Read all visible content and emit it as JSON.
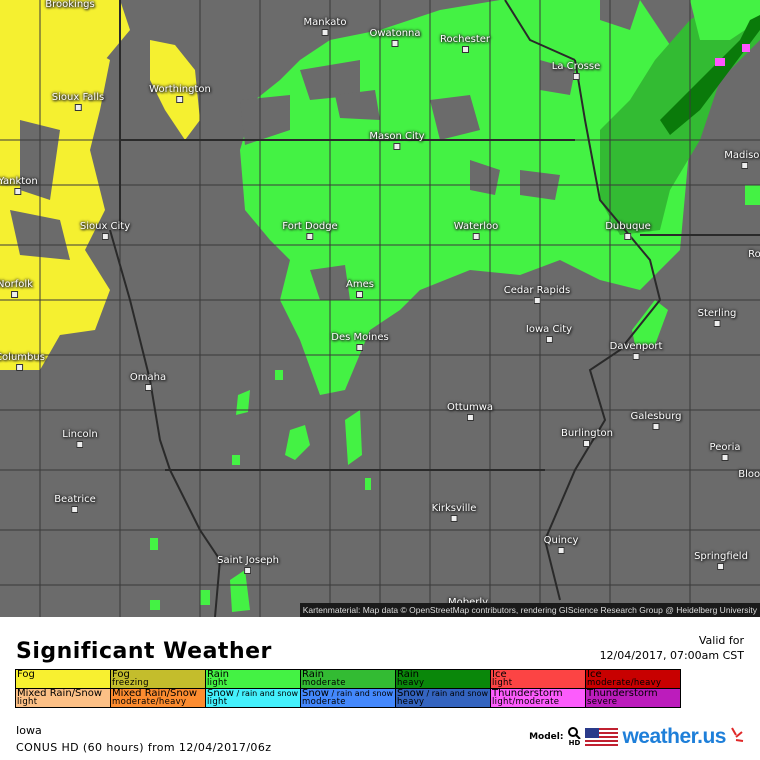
{
  "map": {
    "attribution": "Kartenmaterial: Map data © OpenStreetMap contributors, rendering GIScience Research Group @ Heidelberg University",
    "cities": [
      "Brookings",
      "Mankato",
      "Owatonna",
      "Rochester",
      "La Crosse",
      "Sioux Falls",
      "Worthington",
      "Mason City",
      "Madison",
      "Yankton",
      "Sioux City",
      "Fort Dodge",
      "Waterloo",
      "Dubuque",
      "Rockford",
      "Norfolk",
      "Ames",
      "Cedar Rapids",
      "Sterling",
      "Iowa City",
      "Des Moines",
      "Davenport",
      "Columbus",
      "Omaha",
      "Ottumwa",
      "Galesburg",
      "Lincoln",
      "Burlington",
      "Peoria",
      "Bloomington",
      "Beatrice",
      "Kirksville",
      "Quincy",
      "Saint Joseph",
      "Springfield",
      "Moberly"
    ],
    "colors": {
      "background": "#6b6b6b",
      "fog": "#f5f030",
      "rain_light": "#44f244",
      "rain_moderate": "#33bb33",
      "rain_heavy": "#0a7a0a",
      "thunderstorm": "#ff55ff"
    }
  },
  "legend": {
    "title": "Significant Weather",
    "valid_label": "Valid for",
    "valid_time": "12/04/2017, 07:00am CST",
    "row1": [
      {
        "type": "Fog",
        "sub": "",
        "color": "#f8f030"
      },
      {
        "type": "Fog",
        "sub": "freezing",
        "color": "#c4bd2c"
      },
      {
        "type": "Rain",
        "sub": "light",
        "color": "#44f244"
      },
      {
        "type": "Rain",
        "sub": "moderate",
        "color": "#33bb33"
      },
      {
        "type": "Rain",
        "sub": "heavy",
        "color": "#0a870a"
      },
      {
        "type": "Ice",
        "sub": "light",
        "color": "#fc4444"
      },
      {
        "type": "Ice",
        "sub": "moderate/heavy",
        "color": "#c80000"
      }
    ],
    "row2": [
      {
        "type": "Mixed Rain/Snow",
        "extra": "",
        "sub": "light",
        "color": "#fcc086"
      },
      {
        "type": "Mixed Rain/Snow",
        "extra": "",
        "sub": "moderate/heavy",
        "color": "#fc8c30"
      },
      {
        "type": "Snow",
        "extra": " / rain and snow",
        "sub": "light",
        "color": "#44f0fc"
      },
      {
        "type": "Snow",
        "extra": " / rain and snow",
        "sub": "moderate",
        "color": "#4488fc"
      },
      {
        "type": "Snow",
        "extra": " / rain and snow",
        "sub": "heavy",
        "color": "#3464c0"
      },
      {
        "type": "Thunderstorm",
        "extra": "",
        "sub": "light/moderate",
        "color": "#fc5cfc"
      },
      {
        "type": "Thunderstorm",
        "extra": "",
        "sub": "severe",
        "color": "#bc1cbc"
      }
    ]
  },
  "footer": {
    "region": "Iowa",
    "model_run": "CONUS HD (60 hours) from 12/04/2017/06z",
    "model_label": "Model:",
    "model_badge": "HD",
    "brand": "weather.us"
  }
}
